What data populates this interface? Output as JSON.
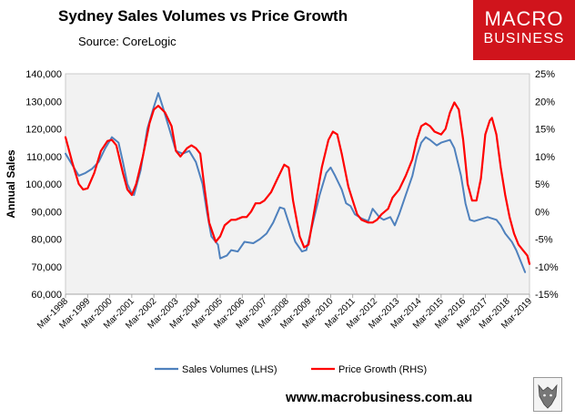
{
  "header": {
    "title": "Sydney Sales Volumes vs Price Growth",
    "source": "Source: CoreLogic"
  },
  "logo": {
    "line1": "MACRO",
    "line2": "BUSINESS"
  },
  "footer": {
    "website": "www.macrobusiness.com.au"
  },
  "colors": {
    "sales": "#4f81bd",
    "price": "#ff0000",
    "plot_bg": "#f2f2f2"
  },
  "chart_data": {
    "type": "line",
    "title": "Sydney Sales Volumes vs Price Growth",
    "ylabel": "Annual Sales",
    "y_left": {
      "min": 60000,
      "max": 140000,
      "step": 10000,
      "ticks": [
        "60,000",
        "70,000",
        "80,000",
        "90,000",
        "100,000",
        "110,000",
        "120,000",
        "130,000",
        "140,000"
      ]
    },
    "y_right": {
      "min": -15,
      "max": 25,
      "step": 5,
      "ticks": [
        "-15%",
        "-10%",
        "-5%",
        "0%",
        "5%",
        "10%",
        "15%",
        "20%",
        "25%"
      ]
    },
    "x_ticks": [
      "Mar-1998",
      "Mar-1999",
      "Mar-2000",
      "Mar-2001",
      "Mar-2002",
      "Mar-2003",
      "Mar-2004",
      "Mar-2005",
      "Mar-2006",
      "Mar-2007",
      "Mar-2008",
      "Mar-2009",
      "Mar-2010",
      "Mar-2011",
      "Mar-2012",
      "Mar-2013",
      "Mar-2014",
      "Mar-2015",
      "Mar-2016",
      "Mar-2017",
      "Mar-2018",
      "Mar-2019"
    ],
    "x_range": [
      1998.0,
      2019.0
    ],
    "series": [
      {
        "name": "Sales Volumes (LHS)",
        "axis": "left",
        "points": [
          [
            1998.0,
            111000
          ],
          [
            1998.3,
            107000
          ],
          [
            1998.6,
            103000
          ],
          [
            1998.9,
            104000
          ],
          [
            1999.2,
            105500
          ],
          [
            1999.5,
            108000
          ],
          [
            1999.8,
            113000
          ],
          [
            2000.1,
            117000
          ],
          [
            2000.4,
            115000
          ],
          [
            2000.6,
            108000
          ],
          [
            2000.8,
            100000
          ],
          [
            2001.0,
            96500
          ],
          [
            2001.1,
            96000
          ],
          [
            2001.4,
            105000
          ],
          [
            2001.7,
            120000
          ],
          [
            2002.0,
            128000
          ],
          [
            2002.2,
            133000
          ],
          [
            2002.4,
            128000
          ],
          [
            2002.7,
            120000
          ],
          [
            2003.0,
            112000
          ],
          [
            2003.3,
            111000
          ],
          [
            2003.6,
            112000
          ],
          [
            2003.9,
            108000
          ],
          [
            2004.2,
            100000
          ],
          [
            2004.4,
            90000
          ],
          [
            2004.6,
            81000
          ],
          [
            2004.9,
            78000
          ],
          [
            2005.0,
            73000
          ],
          [
            2005.3,
            74000
          ],
          [
            2005.5,
            76000
          ],
          [
            2005.8,
            75500
          ],
          [
            2006.1,
            79000
          ],
          [
            2006.5,
            78500
          ],
          [
            2006.8,
            80000
          ],
          [
            2007.1,
            82000
          ],
          [
            2007.4,
            86000
          ],
          [
            2007.7,
            91500
          ],
          [
            2007.9,
            91000
          ],
          [
            2008.1,
            86000
          ],
          [
            2008.4,
            79000
          ],
          [
            2008.7,
            75500
          ],
          [
            2008.9,
            76000
          ],
          [
            2009.2,
            86000
          ],
          [
            2009.5,
            96000
          ],
          [
            2009.8,
            104000
          ],
          [
            2010.0,
            106000
          ],
          [
            2010.2,
            103000
          ],
          [
            2010.5,
            98000
          ],
          [
            2010.7,
            93000
          ],
          [
            2010.9,
            92000
          ],
          [
            2011.1,
            89000
          ],
          [
            2011.4,
            87500
          ],
          [
            2011.7,
            86500
          ],
          [
            2011.9,
            91000
          ],
          [
            2012.2,
            88000
          ],
          [
            2012.4,
            87000
          ],
          [
            2012.7,
            88000
          ],
          [
            2012.9,
            85000
          ],
          [
            2013.1,
            89000
          ],
          [
            2013.4,
            96000
          ],
          [
            2013.7,
            103000
          ],
          [
            2013.9,
            110000
          ],
          [
            2014.1,
            115000
          ],
          [
            2014.3,
            117000
          ],
          [
            2014.5,
            116000
          ],
          [
            2014.8,
            114000
          ],
          [
            2015.0,
            115000
          ],
          [
            2015.2,
            115500
          ],
          [
            2015.4,
            116000
          ],
          [
            2015.6,
            113000
          ],
          [
            2015.9,
            103000
          ],
          [
            2016.1,
            93000
          ],
          [
            2016.3,
            87000
          ],
          [
            2016.5,
            86500
          ],
          [
            2016.7,
            87000
          ],
          [
            2016.9,
            87500
          ],
          [
            2017.1,
            88000
          ],
          [
            2017.3,
            87500
          ],
          [
            2017.5,
            87000
          ],
          [
            2017.7,
            85000
          ],
          [
            2017.9,
            82000
          ],
          [
            2018.2,
            79000
          ],
          [
            2018.4,
            76000
          ],
          [
            2018.6,
            72000
          ],
          [
            2018.8,
            68000
          ]
        ]
      },
      {
        "name": "Price Growth (RHS)",
        "axis": "right",
        "points": [
          [
            1998.0,
            13.5
          ],
          [
            1998.3,
            9.0
          ],
          [
            1998.6,
            5.0
          ],
          [
            1998.8,
            4.0
          ],
          [
            1999.0,
            4.2
          ],
          [
            1999.3,
            7.0
          ],
          [
            1999.6,
            11.0
          ],
          [
            1999.9,
            12.8
          ],
          [
            2000.1,
            13.0
          ],
          [
            2000.3,
            12.0
          ],
          [
            2000.6,
            7.0
          ],
          [
            2000.8,
            4.0
          ],
          [
            2001.0,
            3.0
          ],
          [
            2001.2,
            5.0
          ],
          [
            2001.5,
            10.0
          ],
          [
            2001.8,
            16.0
          ],
          [
            2002.0,
            18.5
          ],
          [
            2002.2,
            19.2
          ],
          [
            2002.5,
            18.0
          ],
          [
            2002.8,
            15.5
          ],
          [
            2003.0,
            11.0
          ],
          [
            2003.2,
            10.0
          ],
          [
            2003.5,
            11.5
          ],
          [
            2003.7,
            12.0
          ],
          [
            2003.9,
            11.5
          ],
          [
            2004.1,
            10.5
          ],
          [
            2004.3,
            4.0
          ],
          [
            2004.5,
            -2.0
          ],
          [
            2004.8,
            -5.5
          ],
          [
            2005.0,
            -4.5
          ],
          [
            2005.2,
            -2.5
          ],
          [
            2005.5,
            -1.5
          ],
          [
            2005.7,
            -1.5
          ],
          [
            2006.0,
            -1.0
          ],
          [
            2006.2,
            -1.0
          ],
          [
            2006.4,
            0.0
          ],
          [
            2006.6,
            1.5
          ],
          [
            2006.8,
            1.5
          ],
          [
            2007.0,
            2.0
          ],
          [
            2007.3,
            3.5
          ],
          [
            2007.6,
            6.0
          ],
          [
            2007.9,
            8.5
          ],
          [
            2008.1,
            8.0
          ],
          [
            2008.3,
            2.0
          ],
          [
            2008.6,
            -4.5
          ],
          [
            2008.8,
            -6.5
          ],
          [
            2009.0,
            -6.0
          ],
          [
            2009.3,
            1.0
          ],
          [
            2009.6,
            8.0
          ],
          [
            2009.9,
            13.0
          ],
          [
            2010.1,
            14.5
          ],
          [
            2010.3,
            14.0
          ],
          [
            2010.5,
            10.5
          ],
          [
            2010.8,
            4.5
          ],
          [
            2011.0,
            2.0
          ],
          [
            2011.2,
            -0.5
          ],
          [
            2011.4,
            -1.5
          ],
          [
            2011.7,
            -2.0
          ],
          [
            2011.9,
            -2.0
          ],
          [
            2012.1,
            -1.5
          ],
          [
            2012.3,
            -0.5
          ],
          [
            2012.6,
            0.5
          ],
          [
            2012.8,
            2.5
          ],
          [
            2013.1,
            4.0
          ],
          [
            2013.4,
            6.5
          ],
          [
            2013.7,
            9.5
          ],
          [
            2013.9,
            13.0
          ],
          [
            2014.1,
            15.5
          ],
          [
            2014.3,
            16.0
          ],
          [
            2014.5,
            15.5
          ],
          [
            2014.7,
            14.5
          ],
          [
            2015.0,
            14.0
          ],
          [
            2015.2,
            15.0
          ],
          [
            2015.4,
            18.0
          ],
          [
            2015.6,
            19.8
          ],
          [
            2015.8,
            18.5
          ],
          [
            2016.0,
            13.0
          ],
          [
            2016.2,
            5.0
          ],
          [
            2016.4,
            2.0
          ],
          [
            2016.6,
            2.0
          ],
          [
            2016.8,
            6.0
          ],
          [
            2017.0,
            14.0
          ],
          [
            2017.2,
            16.5
          ],
          [
            2017.3,
            17.0
          ],
          [
            2017.5,
            14.0
          ],
          [
            2017.7,
            8.0
          ],
          [
            2017.9,
            3.0
          ],
          [
            2018.1,
            -1.0
          ],
          [
            2018.3,
            -4.0
          ],
          [
            2018.5,
            -6.0
          ],
          [
            2018.7,
            -7.0
          ],
          [
            2018.9,
            -8.0
          ],
          [
            2019.0,
            -9.5
          ]
        ]
      }
    ],
    "legend": [
      "Sales Volumes (LHS)",
      "Price Growth (RHS)"
    ],
    "legend_position": "bottom",
    "grid": false
  }
}
